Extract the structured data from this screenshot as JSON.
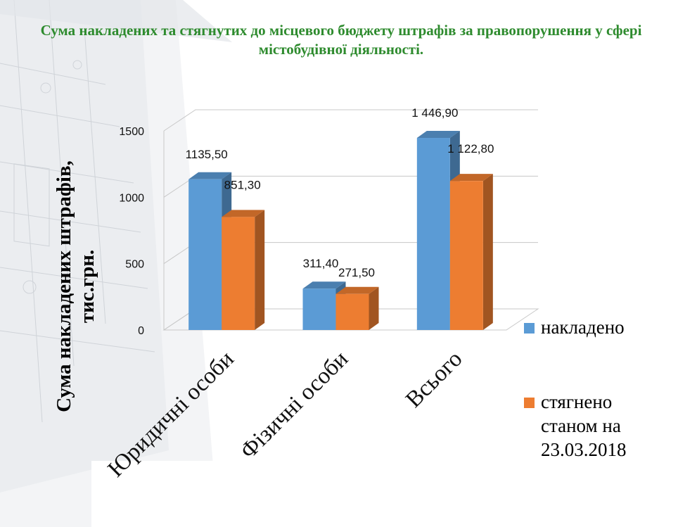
{
  "page": {
    "title": "Сума накладених та стягнутих до місцевого бюджету штрафів за правопорушення у сфері містобудівної діяльності."
  },
  "chart_data": {
    "type": "bar",
    "style": "3d-clustered-column",
    "title": "Сума накладених та стягнутих до місцевого бюджету штрафів за правопорушення у сфері містобудівної діяльності.",
    "ylabel": "Сума накладених штрафів, тис.грн.",
    "xlabel": "",
    "categories": [
      "Юридичні особи",
      "Фізичні особи",
      "Всього"
    ],
    "ylim": [
      0,
      1500
    ],
    "yticks": [
      0,
      500,
      1000,
      1500
    ],
    "grid": true,
    "legend_position": "right",
    "series": [
      {
        "name": "накладено",
        "values": [
          1135.5,
          311.4,
          1446.9
        ],
        "labels": [
          "1135,50",
          "311,40",
          "1 446,90"
        ],
        "color": "#5b9bd5"
      },
      {
        "name": "стягнено станом на 23.03.2018",
        "values": [
          851.3,
          271.5,
          1122.8
        ],
        "labels": [
          "851,30",
          "271,50",
          "1 122,80"
        ],
        "color": "#ed7d31"
      }
    ]
  }
}
